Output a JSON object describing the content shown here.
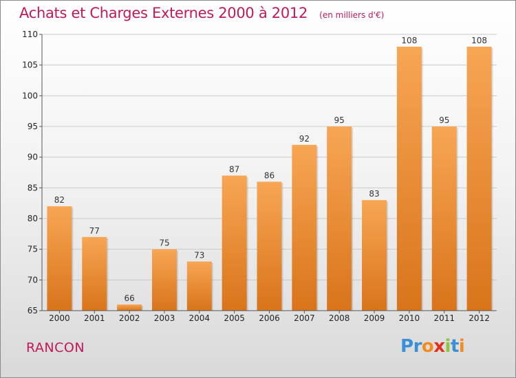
{
  "header": {
    "title": "Achats et Charges Externes 2000 à 2012",
    "subtitle": "(en milliers d'€)"
  },
  "footer": {
    "commune": "RANCON",
    "logo_text": "Proxiti",
    "logo_letters": [
      {
        "ch": "P",
        "color": "#3a8fd6"
      },
      {
        "ch": "r",
        "color": "#3a8fd6"
      },
      {
        "ch": "o",
        "color": "#f28c1e"
      },
      {
        "ch": "x",
        "color": "#e0301e"
      },
      {
        "ch": "i",
        "color": "#8cc63f"
      },
      {
        "ch": "t",
        "color": "#3a8fd6"
      },
      {
        "ch": "i",
        "color": "#f28c1e"
      }
    ]
  },
  "colors": {
    "title": "#c2185b",
    "bar_top": "#f7a654",
    "bar_bottom": "#d9741a",
    "grid": "#c9c9c9",
    "axis": "#555555"
  },
  "chart_data": {
    "type": "bar",
    "title": "Achats et Charges Externes 2000 à 2012",
    "subtitle": "(en milliers d'€)",
    "categories": [
      "2000",
      "2001",
      "2002",
      "2003",
      "2004",
      "2005",
      "2006",
      "2007",
      "2008",
      "2009",
      "2010",
      "2011",
      "2012"
    ],
    "values": [
      82,
      77,
      66,
      75,
      73,
      87,
      86,
      92,
      95,
      83,
      108,
      95,
      108
    ],
    "ylim": [
      65,
      110
    ],
    "yticks": [
      65,
      70,
      75,
      80,
      85,
      90,
      95,
      100,
      105,
      110
    ],
    "grid": true,
    "legend": "none",
    "data_labels": true
  }
}
